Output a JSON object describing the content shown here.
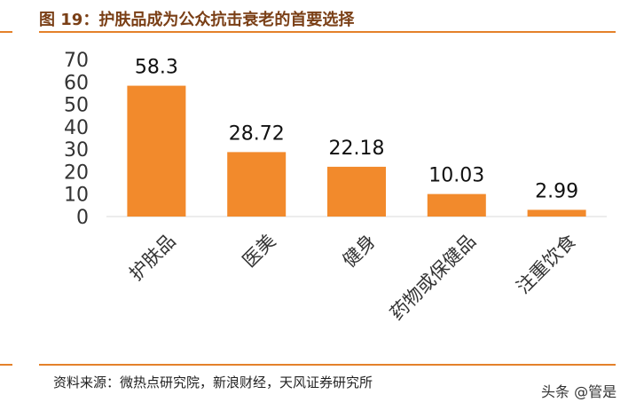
{
  "header": {
    "title": "图 19：护肤品成为公众抗击衰老的首要选择"
  },
  "footer": {
    "source": "资料来源：微热点研究院，新浪财经，天风证券研究所"
  },
  "watermark": {
    "text": "头条 @管是"
  },
  "colors": {
    "bar": "#f28a2c",
    "rule": "#e4812a",
    "title": "#7a3f16"
  },
  "chart_data": {
    "type": "bar",
    "title": "",
    "xlabel": "",
    "ylabel": "",
    "categories": [
      "护肤品",
      "医美",
      "健身",
      "药物或保健品",
      "注重饮食"
    ],
    "values": [
      58.3,
      28.72,
      22.18,
      10.03,
      2.99
    ],
    "data_labels": [
      "58.3",
      "28.72",
      "22.18",
      "10.03",
      "2.99"
    ],
    "ylim": [
      0,
      70
    ],
    "yticks": [
      0,
      10,
      20,
      30,
      40,
      50,
      60,
      70
    ],
    "grid": false,
    "legend": "none"
  }
}
